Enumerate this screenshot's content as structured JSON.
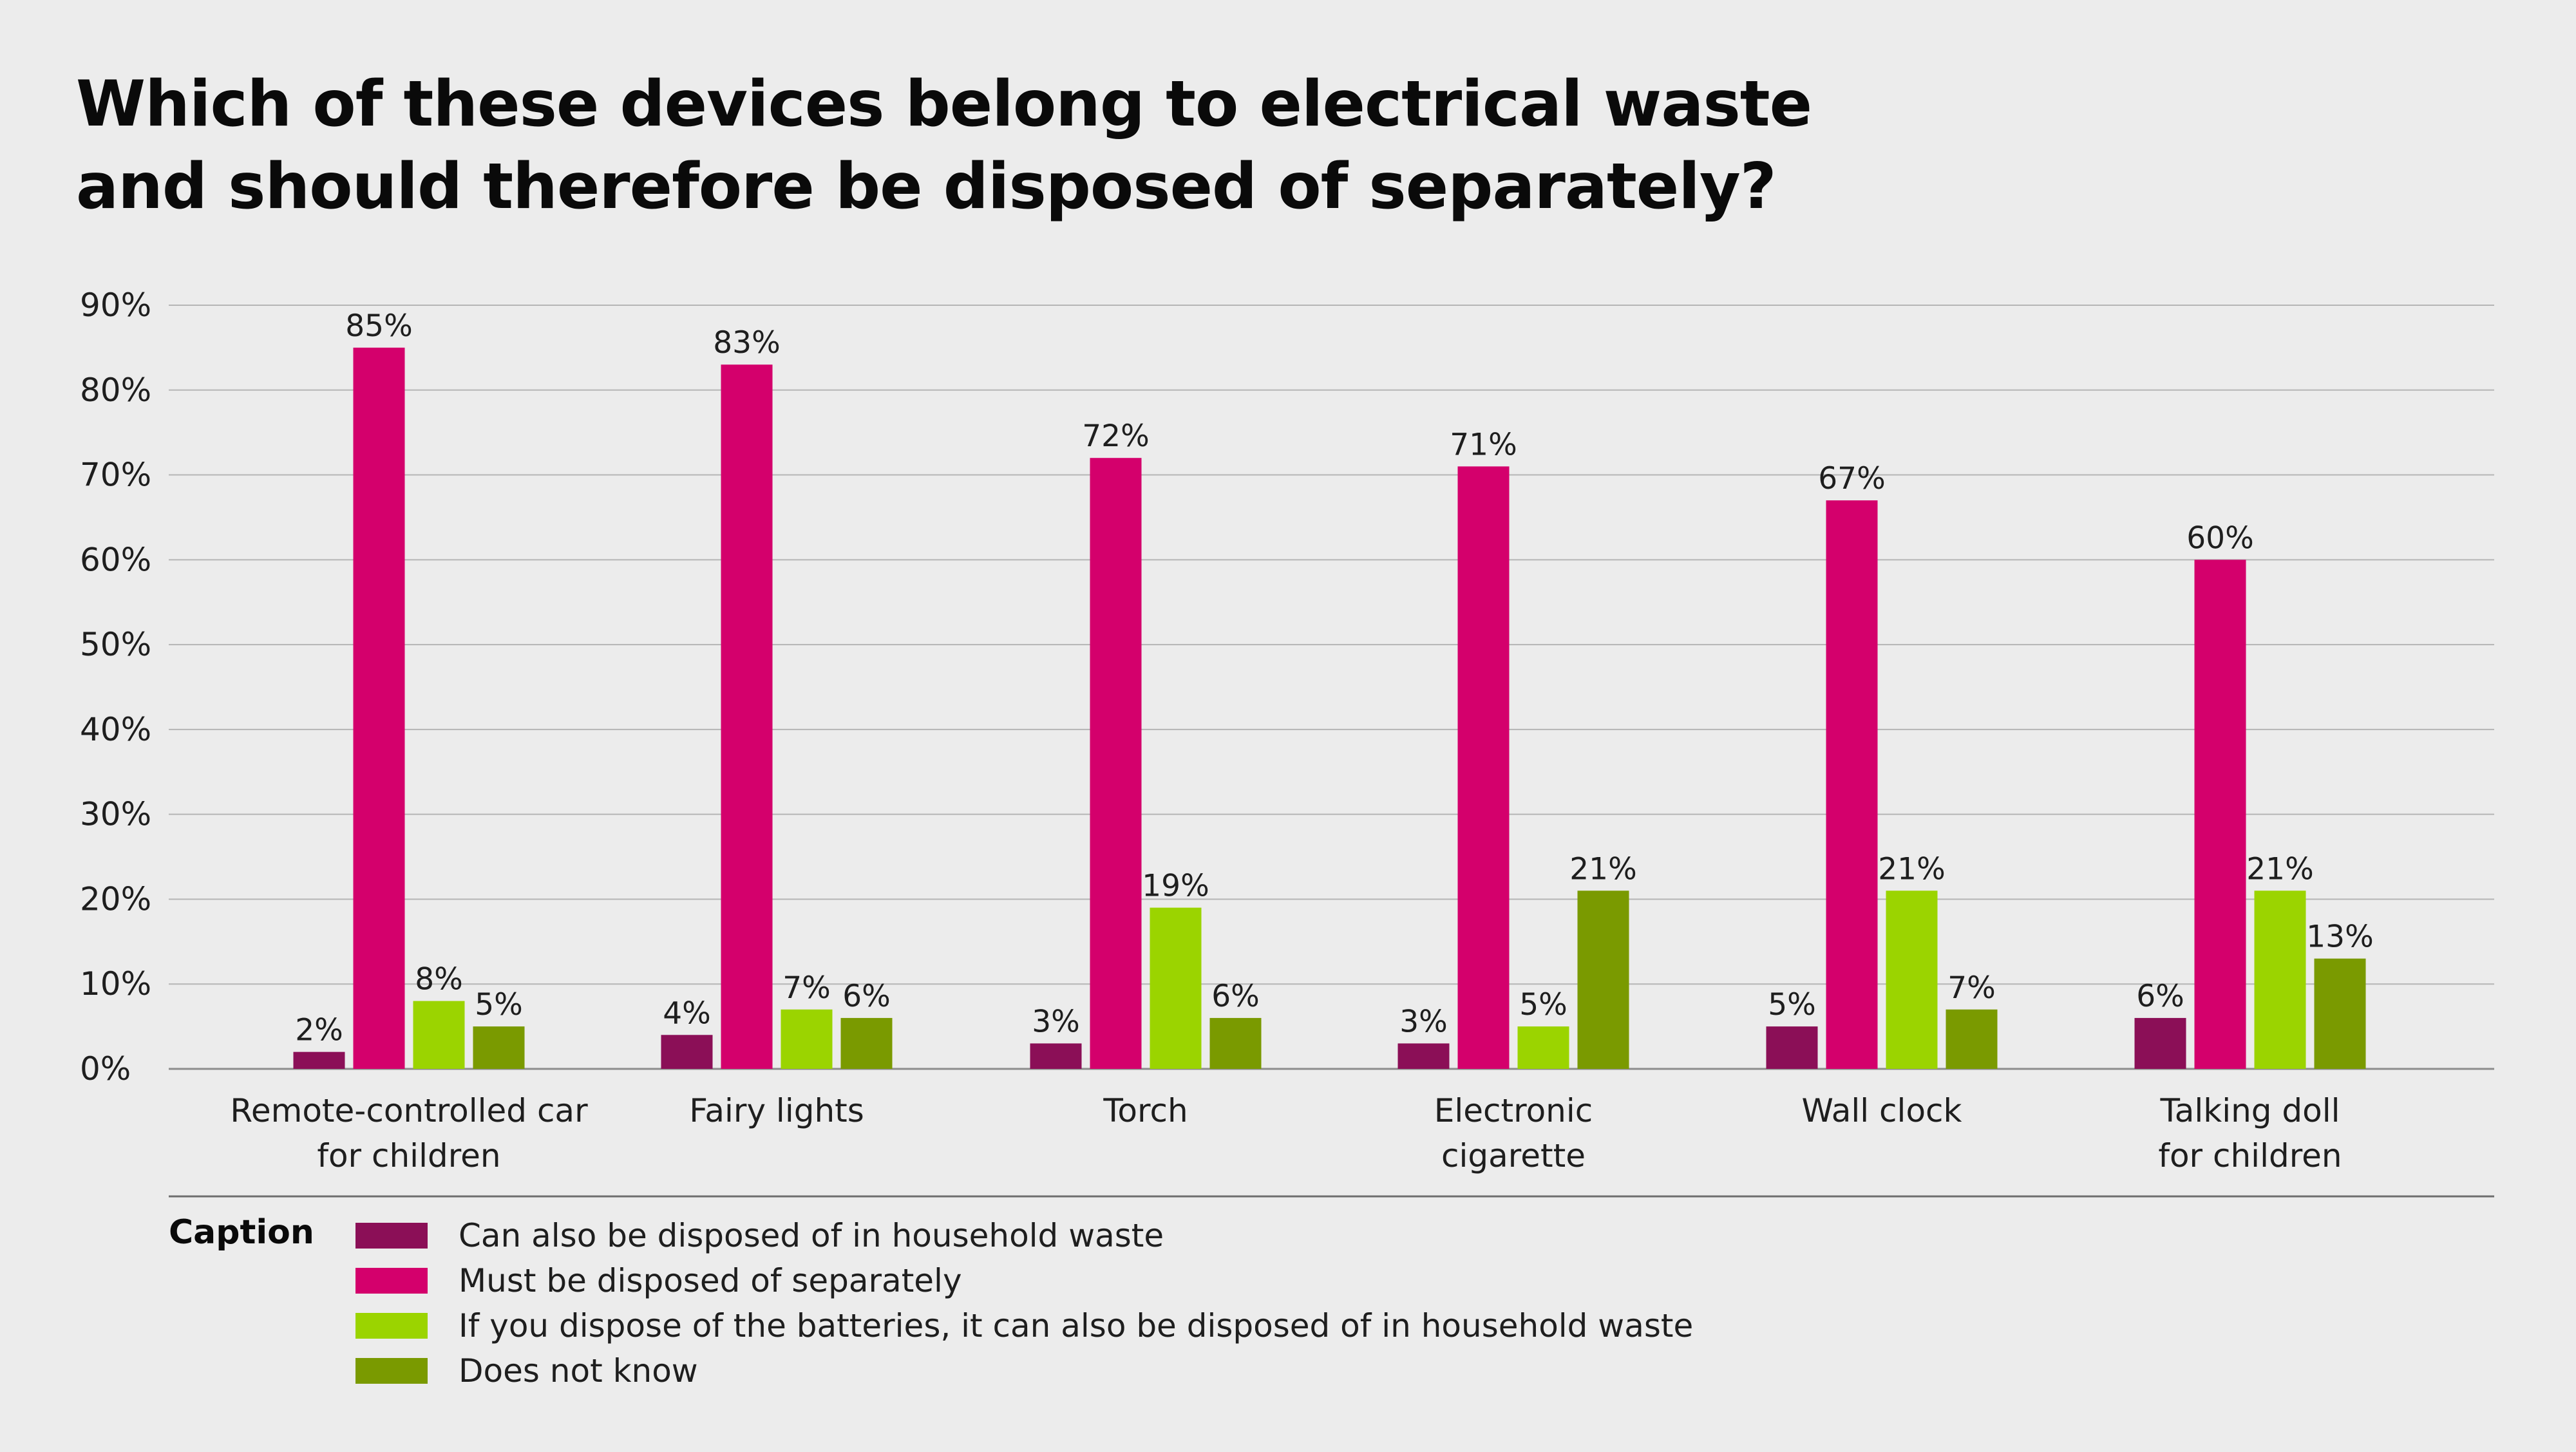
{
  "chart_data": {
    "type": "bar",
    "title": [
      "Which of these devices belong to electrical waste",
      "and should therefore be disposed of separately?"
    ],
    "categories": [
      [
        "Remote-controlled car",
        "for children"
      ],
      [
        "Fairy lights"
      ],
      [
        "Torch"
      ],
      [
        "Electronic",
        "cigarette"
      ],
      [
        "Wall clock"
      ],
      [
        "Talking doll",
        "for children"
      ]
    ],
    "series": [
      {
        "name": "Can also be disposed of in household waste",
        "color": "#8b0f57",
        "values": [
          2,
          4,
          3,
          3,
          5,
          6
        ]
      },
      {
        "name": "Must be disposed of separately",
        "color": "#d4006c",
        "values": [
          85,
          83,
          72,
          71,
          67,
          60
        ]
      },
      {
        "name": "If you dispose of the batteries, it can also be disposed of in household waste",
        "color": "#9bd400",
        "values": [
          8,
          7,
          19,
          5,
          21,
          21
        ]
      },
      {
        "name": "Does not know",
        "color": "#7a9a00",
        "values": [
          5,
          6,
          6,
          21,
          7,
          13
        ]
      }
    ],
    "value_suffix": "%",
    "ylim": [
      0,
      90
    ],
    "yticks": [
      0,
      10,
      20,
      30,
      40,
      50,
      60,
      70,
      80,
      90
    ],
    "ytick_labels": [
      "0%",
      "10%",
      "20%",
      "30%",
      "40%",
      "50%",
      "60%",
      "70%",
      "80%",
      "90%"
    ],
    "grid": true,
    "legend_title": "Caption",
    "legend_position": "bottom-left"
  }
}
